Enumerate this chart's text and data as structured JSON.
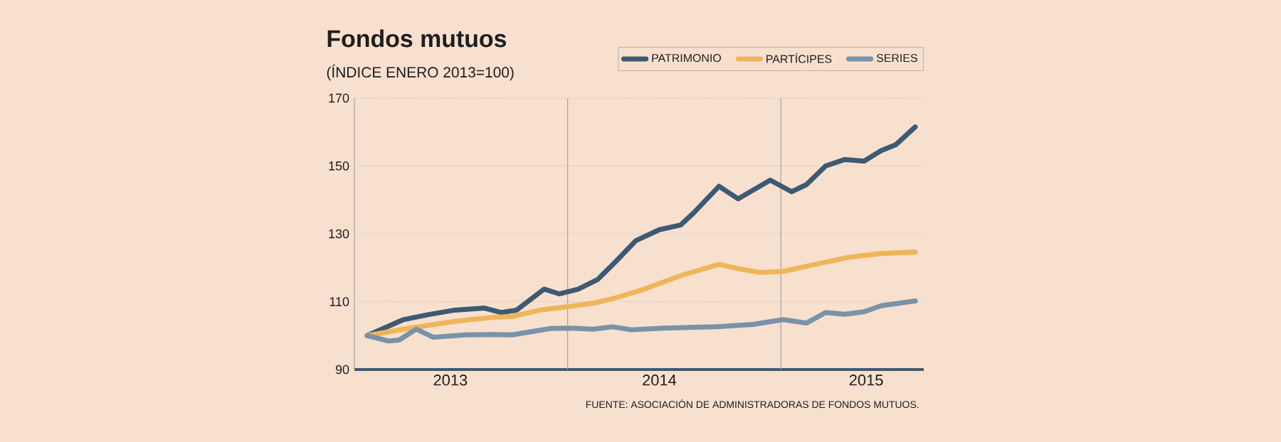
{
  "chart_data": {
    "type": "line",
    "title": "Fondos mutuos",
    "subtitle": "(ÍNDICE ENERO 2013=100)",
    "annotations": [
      "FUENTE: ASOCIACIÓN DE ADMINISTRADORAS DE FONDOS MUTUOS."
    ],
    "xlim": [
      2013.0,
      2015.67
    ],
    "xticks": [
      {
        "value": 2013.45,
        "label": "2013"
      },
      {
        "value": 2014.43,
        "label": "2014"
      },
      {
        "value": 2015.4,
        "label": "2015"
      }
    ],
    "ylim": [
      90,
      170
    ],
    "yticks": [
      90,
      110,
      130,
      150,
      170
    ],
    "grid": "y",
    "legend": "top right",
    "ref_lines": [
      {
        "axis": "x",
        "value": 2014.0,
        "color": "#a9a19a"
      },
      {
        "axis": "x",
        "value": 2015.0,
        "color": "#a9a19a"
      }
    ],
    "series": [
      {
        "name": "PATRIMONIO",
        "color": "#3d5a73",
        "x": [
          2013.06,
          2013.23,
          2013.34,
          2013.47,
          2013.61,
          2013.69,
          2013.76,
          2013.89,
          2013.96,
          2014.05,
          2014.14,
          2014.23,
          2014.32,
          2014.43,
          2014.53,
          2014.59,
          2014.71,
          2014.8,
          2014.95,
          2015.05,
          2015.12,
          2015.21,
          2015.3,
          2015.39,
          2015.47,
          2015.54,
          2015.63
        ],
        "values": [
          100,
          104.7,
          106.1,
          107.5,
          108.1,
          106.8,
          107.5,
          113.7,
          112.3,
          113.7,
          116.5,
          122.1,
          128.0,
          131.2,
          132.6,
          136.1,
          144.0,
          140.3,
          145.8,
          142.4,
          144.5,
          150.0,
          151.9,
          151.4,
          154.5,
          156.3,
          161.5
        ]
      },
      {
        "name": "PARTÍCIPES",
        "color": "#efb55a",
        "x": [
          2013.06,
          2013.25,
          2013.47,
          2013.65,
          2013.74,
          2013.87,
          2014.01,
          2014.14,
          2014.23,
          2014.36,
          2014.54,
          2014.71,
          2014.81,
          2014.9,
          2015.01,
          2015.14,
          2015.32,
          2015.47,
          2015.63
        ],
        "values": [
          100,
          102.1,
          104.2,
          105.4,
          105.6,
          107.5,
          108.6,
          109.8,
          111.2,
          113.7,
          117.9,
          121.0,
          119.6,
          118.6,
          118.9,
          120.7,
          123.1,
          124.2,
          124.6
        ]
      },
      {
        "name": "SERIES",
        "color": "#7892a8",
        "x": [
          2013.06,
          2013.16,
          2013.21,
          2013.29,
          2013.37,
          2013.52,
          2013.65,
          2013.74,
          2013.92,
          2014.01,
          2014.12,
          2014.21,
          2014.3,
          2014.45,
          2014.7,
          2014.87,
          2015.01,
          2015.12,
          2015.21,
          2015.3,
          2015.39,
          2015.47,
          2015.63
        ],
        "values": [
          100,
          98.4,
          98.7,
          101.9,
          99.5,
          100.2,
          100.3,
          100.2,
          102.1,
          102.2,
          101.9,
          102.6,
          101.7,
          102.2,
          102.6,
          103.3,
          104.7,
          103.7,
          106.8,
          106.3,
          107.0,
          108.8,
          110.2
        ]
      }
    ]
  }
}
